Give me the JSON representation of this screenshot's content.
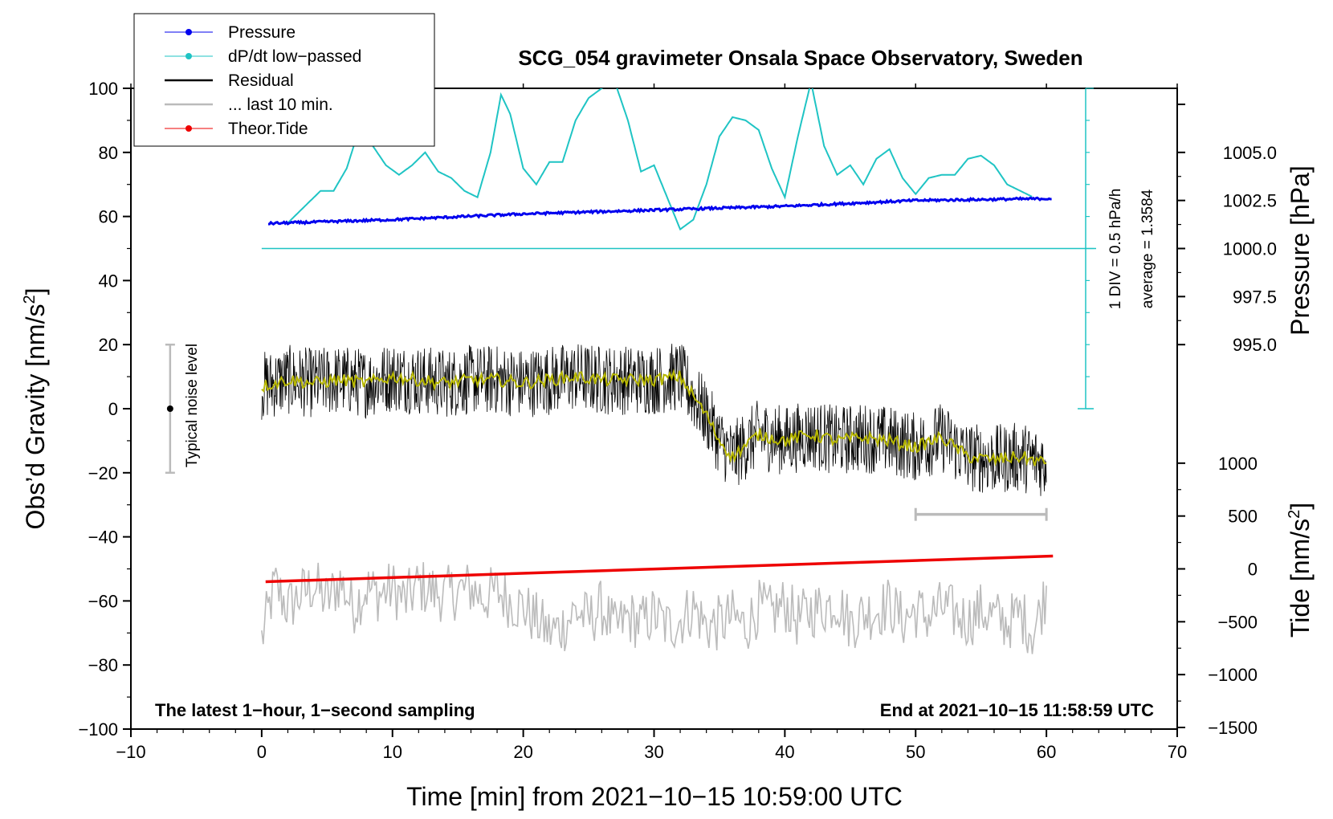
{
  "chart_data": {
    "type": "line",
    "title": "SCG_054 gravimeter Onsala Space Observatory, Sweden",
    "xlabel": "Time [min] from 2021−10−15 10:59:00 UTC",
    "ylabel_left": "Obs’d Gravity [nm/s",
    "ylabel_left_sup": "2",
    "ylabel_left_end": "]",
    "ylabel_right_pressure": "Pressure [hPa]",
    "ylabel_right_tide": "Tide [nm/s",
    "ylabel_right_tide_sup": "2",
    "ylabel_right_tide_end": "]",
    "xlim": [
      -10,
      70
    ],
    "ylim": [
      -100,
      100
    ],
    "x_ticks": [
      "−10",
      "0",
      "10",
      "20",
      "30",
      "40",
      "50",
      "60",
      "70"
    ],
    "y_ticks": [
      "−100",
      "−80",
      "−60",
      "−40",
      "−20",
      "0",
      "20",
      "40",
      "60",
      "80",
      "100"
    ],
    "pressure_axis": {
      "ticks": [
        "995.0",
        "997.5",
        "1000.0",
        "1002.5",
        "1005.0"
      ],
      "values": [
        995.0,
        997.5,
        1000.0,
        1002.5,
        1005.0
      ]
    },
    "tide_axis": {
      "ticks": [
        "−1500",
        "−1000",
        "−500",
        "0",
        "500",
        "1000"
      ],
      "values": [
        -1500,
        -1000,
        -500,
        0,
        500,
        1000
      ]
    },
    "legend": [
      "Pressure",
      "dP/dt low−passed",
      "Residual",
      "... last 10 min.",
      "Theor.Tide"
    ],
    "annotations": {
      "noise_level": "Typical noise level",
      "div_note": "1 DIV = 0.5 hPa/h",
      "average_note": "average = 1.3584",
      "left_footer": "The latest 1−hour, 1−second sampling",
      "right_footer": "End at 2021−10−15 11:58:59 UTC"
    },
    "colors": {
      "pressure": "#0000ee",
      "dpdt": "#1fc4c4",
      "residual": "#000000",
      "smoothed": "#b8b800",
      "last10": "#bbbbbb",
      "tide": "#ee0000"
    },
    "series": [
      {
        "name": "Pressure",
        "unit": "hPa",
        "x": [
          0.5,
          10,
          20,
          30,
          40,
          50,
          60.5
        ],
        "values": [
          1001.3,
          1001.5,
          1001.8,
          1002.0,
          1002.2,
          1002.5,
          1002.6
        ]
      },
      {
        "name": "dP/dt low−passed",
        "unit": "nm/s2 (plot scale)",
        "x": [
          2,
          3,
          4.5,
          5.5,
          6.5,
          7.5,
          8.5,
          9.5,
          10.5,
          11.5,
          12.5,
          13.5,
          14.5,
          15.5,
          16.5,
          17.5,
          18.3,
          19,
          20,
          21,
          22,
          23,
          24,
          25,
          26,
          27,
          28,
          29,
          30,
          31,
          32,
          33,
          34,
          35,
          36,
          37,
          38,
          39,
          40,
          41,
          42,
          43,
          44,
          45,
          46,
          47,
          48,
          49,
          50,
          51,
          52,
          53,
          54,
          55,
          56,
          57,
          58,
          59
        ],
        "values": [
          58,
          62,
          68,
          68,
          75,
          88,
          82,
          76,
          73,
          76,
          80,
          74,
          72,
          68,
          66,
          80,
          98,
          92,
          75,
          70,
          77,
          77,
          90,
          97,
          100,
          102,
          90,
          74,
          76,
          66,
          56,
          59,
          70,
          85,
          91,
          90,
          87,
          75,
          66,
          85,
          102,
          82,
          73,
          76,
          70,
          78,
          81,
          72,
          67,
          72,
          73,
          73,
          78,
          79,
          76,
          70,
          68,
          66
        ]
      },
      {
        "name": "Residual",
        "unit": "nm/s2",
        "x": [
          0,
          2,
          4,
          6,
          8,
          10,
          12,
          14,
          16,
          18,
          20,
          22,
          24,
          26,
          28,
          30,
          32,
          33,
          34,
          35,
          36,
          38,
          40,
          42,
          44,
          46,
          48,
          50,
          52,
          54,
          56,
          58,
          60
        ],
        "values": [
          7,
          9,
          8,
          9,
          8,
          10,
          9,
          8,
          9,
          9,
          8,
          9,
          10,
          9,
          9,
          9,
          10,
          4,
          -2,
          -10,
          -15,
          -8,
          -10,
          -8,
          -10,
          -9,
          -10,
          -12,
          -9,
          -15,
          -16,
          -15,
          -17
        ]
      },
      {
        "name": "... last 10 min.",
        "unit": "nm/s2",
        "x": [
          0,
          1,
          2,
          3,
          4,
          5,
          6,
          7,
          8,
          9,
          10,
          11,
          12,
          13,
          14,
          15,
          16,
          17,
          18,
          19,
          20,
          21,
          22,
          23,
          24,
          25,
          26,
          27,
          28,
          29,
          30,
          31,
          32,
          33,
          34,
          35,
          36,
          37,
          38,
          39,
          40,
          41,
          42,
          43,
          44,
          45,
          46,
          47,
          48,
          49,
          50,
          51,
          52,
          53,
          54,
          55,
          56,
          57,
          58,
          59,
          60
        ],
        "values": [
          -72,
          -55,
          -62,
          -58,
          -55,
          -60,
          -54,
          -62,
          -56,
          -58,
          -56,
          -60,
          -55,
          -57,
          -58,
          -57,
          -56,
          -59,
          -57,
          -60,
          -62,
          -66,
          -70,
          -68,
          -63,
          -66,
          -62,
          -69,
          -65,
          -67,
          -64,
          -68,
          -66,
          -62,
          -68,
          -67,
          -65,
          -68,
          -62,
          -64,
          -61,
          -66,
          -63,
          -62,
          -60,
          -67,
          -64,
          -63,
          -61,
          -66,
          -63,
          -65,
          -62,
          -64,
          -66,
          -63,
          -65,
          -67,
          -64,
          -70,
          -57
        ]
      },
      {
        "name": "Theor.Tide",
        "unit": "nm/s2",
        "x": [
          0.3,
          60.5
        ],
        "values": [
          -54,
          -46
        ]
      }
    ]
  }
}
